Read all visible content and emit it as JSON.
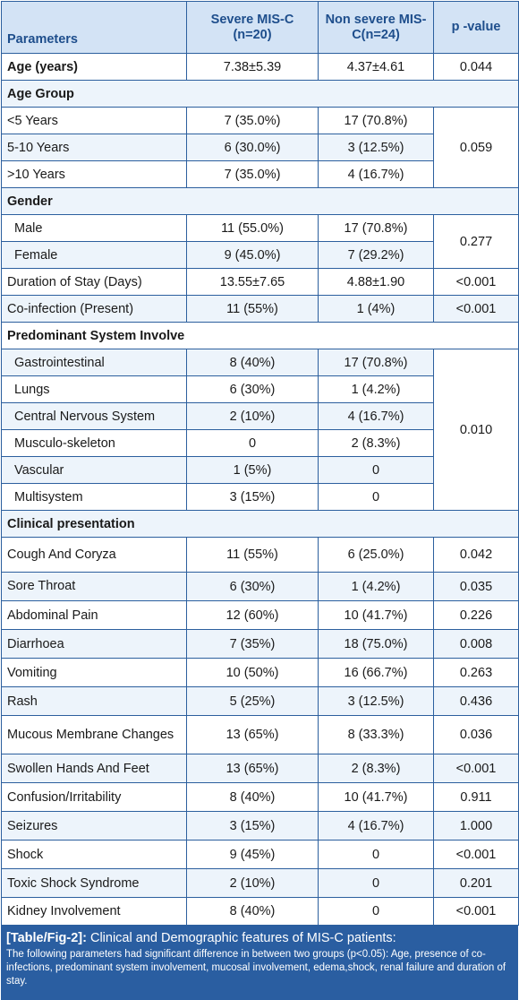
{
  "header": {
    "param": "Parameters",
    "severe": "Severe MIS-C (n=20)",
    "nonsevere": "Non severe MIS-C(n=24)",
    "pvalue": "p -value"
  },
  "rows": {
    "age": {
      "label": "Age (years)",
      "severe": "7.38±5.39",
      "nonsevere": "4.37±4.61",
      "p": "0.044"
    },
    "age_group": {
      "label": "Age Group"
    },
    "lt5": {
      "label": "<5 Years",
      "severe": "7 (35.0%)",
      "nonsevere": "17 (70.8%)"
    },
    "y5_10": {
      "label": "5-10 Years",
      "severe": "6 (30.0%)",
      "nonsevere": "3 (12.5%)"
    },
    "gt10": {
      "label": ">10 Years",
      "severe": "7 (35.0%)",
      "nonsevere": "4 (16.7%)"
    },
    "age_group_p": "0.059",
    "gender": {
      "label": "Gender"
    },
    "male": {
      "label": "Male",
      "severe": "11 (55.0%)",
      "nonsevere": "17 (70.8%)"
    },
    "female": {
      "label": "Female",
      "severe": "9 (45.0%)",
      "nonsevere": "7 (29.2%)"
    },
    "gender_p": "0.277",
    "stay": {
      "label": "Duration of Stay (Days)",
      "severe": "13.55±7.65",
      "nonsevere": "4.88±1.90",
      "p": "<0.001"
    },
    "coinf": {
      "label": "Co-infection (Present)",
      "severe": "11 (55%)",
      "nonsevere": "1 (4%)",
      "p": "<0.001"
    },
    "system": {
      "label": "Predominant System Involve"
    },
    "gi": {
      "label": "Gastrointestinal",
      "severe": "8 (40%)",
      "nonsevere": "17 (70.8%)"
    },
    "lungs": {
      "label": "Lungs",
      "severe": "6 (30%)",
      "nonsevere": "1 (4.2%)"
    },
    "cns": {
      "label": "Central Nervous System",
      "severe": "2 (10%)",
      "nonsevere": "4 (16.7%)"
    },
    "msk": {
      "label": "Musculo-skeleton",
      "severe": "0",
      "nonsevere": "2 (8.3%)"
    },
    "vasc": {
      "label": "Vascular",
      "severe": "1 (5%)",
      "nonsevere": "0"
    },
    "multi": {
      "label": "Multisystem",
      "severe": "3 (15%)",
      "nonsevere": "0"
    },
    "system_p": "0.010",
    "clinical": {
      "label": "Clinical presentation"
    },
    "cough": {
      "label": "Cough And Coryza",
      "severe": "11 (55%)",
      "nonsevere": "6 (25.0%)",
      "p": "0.042"
    },
    "throat": {
      "label": "Sore Throat",
      "severe": "6 (30%)",
      "nonsevere": "1 (4.2%)",
      "p": "0.035"
    },
    "abd": {
      "label": "Abdominal Pain",
      "severe": "12 (60%)",
      "nonsevere": "10 (41.7%)",
      "p": "0.226"
    },
    "diarr": {
      "label": "Diarrhoea",
      "severe": "7 (35%)",
      "nonsevere": "18 (75.0%)",
      "p": "0.008"
    },
    "vomit": {
      "label": "Vomiting",
      "severe": "10 (50%)",
      "nonsevere": "16 (66.7%)",
      "p": "0.263"
    },
    "rash": {
      "label": "Rash",
      "severe": "5 (25%)",
      "nonsevere": "3 (12.5%)",
      "p": "0.436"
    },
    "mucous": {
      "label": "Mucous Membrane Changes",
      "severe": "13 (65%)",
      "nonsevere": "8 (33.3%)",
      "p": "0.036"
    },
    "swollen": {
      "label": "Swollen Hands And Feet",
      "severe": "13 (65%)",
      "nonsevere": "2 (8.3%)",
      "p": "<0.001"
    },
    "confusion": {
      "label": "Confusion/Irritability",
      "severe": "8 (40%)",
      "nonsevere": "10 (41.7%)",
      "p": "0.911"
    },
    "seizures": {
      "label": "Seizures",
      "severe": "3 (15%)",
      "nonsevere": "4 (16.7%)",
      "p": "1.000"
    },
    "shock": {
      "label": "Shock",
      "severe": "9 (45%)",
      "nonsevere": "0",
      "p": "<0.001"
    },
    "tss": {
      "label": "Toxic Shock Syndrome",
      "severe": "2 (10%)",
      "nonsevere": "0",
      "p": "0.201"
    },
    "kidney": {
      "label": "Kidney Involvement",
      "severe": "8 (40%)",
      "nonsevere": "0",
      "p": "<0.001"
    }
  },
  "caption": {
    "tag": "[Table/Fig-2]:",
    "title": " Clinical and Demographic features of MIS-C patients:",
    "note": "The following parameters had significant difference in between two groups (p<0.05): Age, presence of co-infections, predominant system involvement, mucosal involvement, edema,shock, renal failure and duration of stay."
  }
}
